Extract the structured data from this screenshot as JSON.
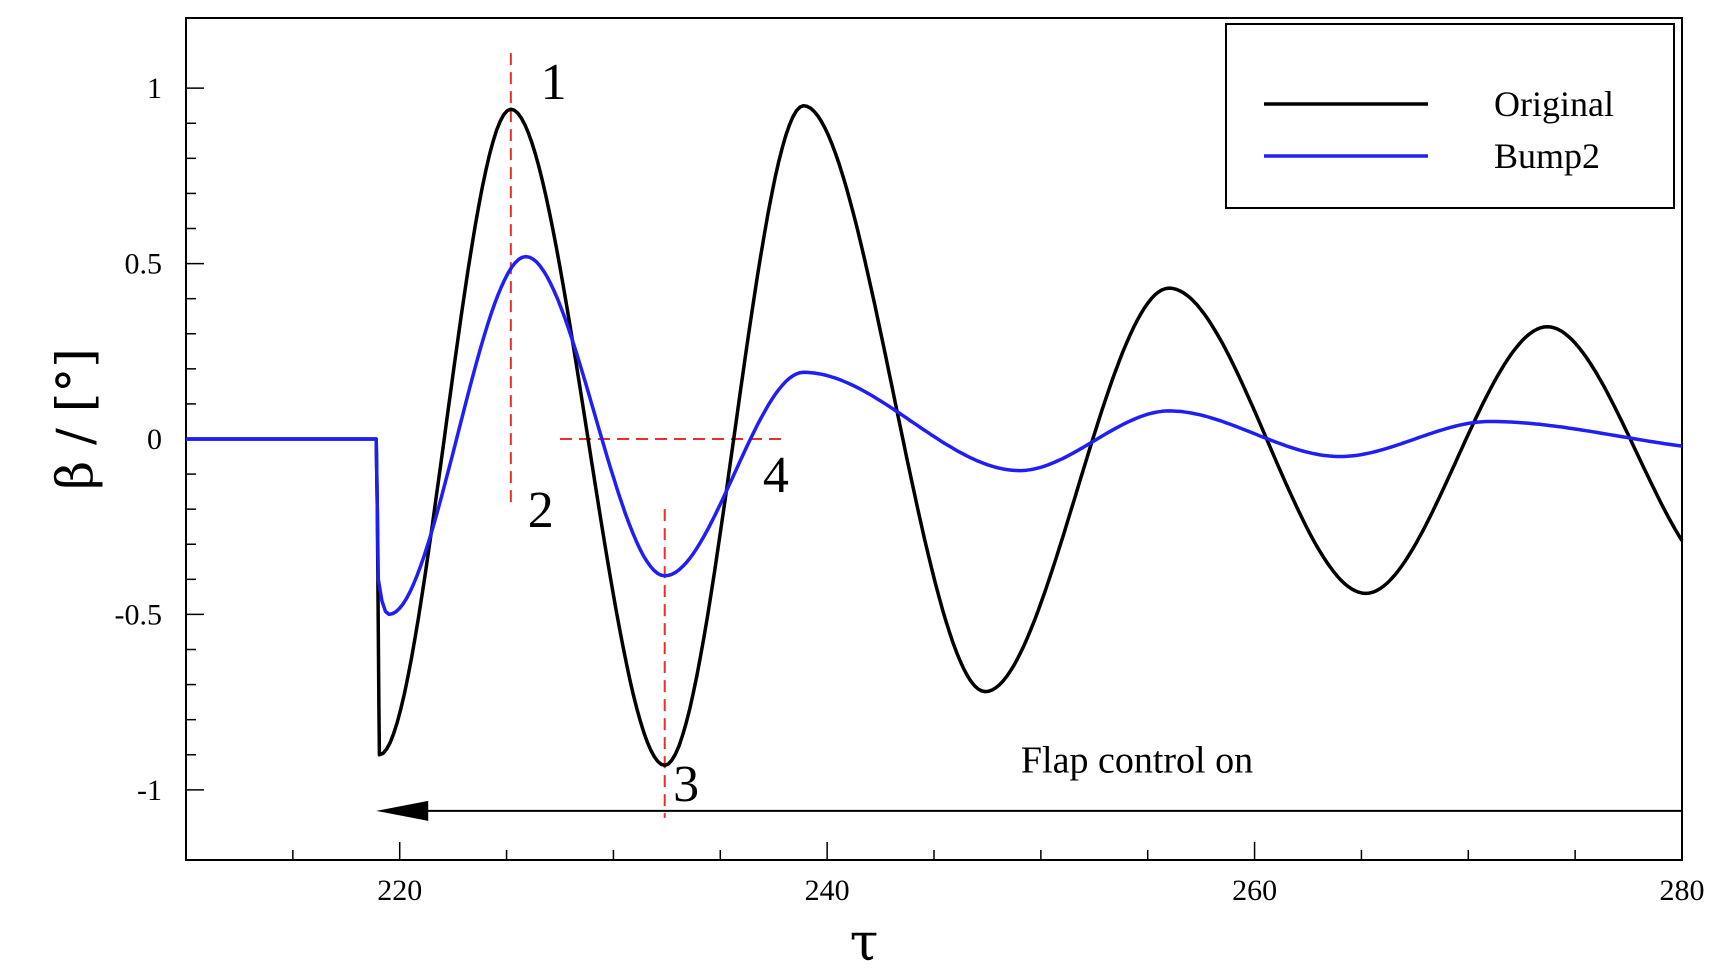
{
  "chart_data": {
    "type": "line",
    "xlabel": "τ",
    "ylabel": "β / [°]",
    "xlim": [
      210,
      280
    ],
    "ylim": [
      -1.2,
      1.2
    ],
    "x_ticks": [
      "220",
      "240",
      "260",
      "280"
    ],
    "y_ticks": [
      "1",
      "0.5",
      "0",
      "-0.5",
      "-1"
    ],
    "grid": false,
    "legend_position": "top-right",
    "series": [
      {
        "name": "Original",
        "color": "#000000",
        "x": [
          210,
          218.9,
          219.0,
          219.05,
          225.2,
          232.4,
          238.9,
          247.4,
          256.0,
          265.2,
          273.7,
          280
        ],
        "y": [
          0,
          0,
          -0.55,
          -0.9,
          0.94,
          -0.93,
          0.95,
          -0.72,
          0.43,
          -0.44,
          0.32,
          -0.29
        ]
      },
      {
        "name": "Bump2",
        "color": "#1f1ff5",
        "x": [
          210,
          218.9,
          219.0,
          219.5,
          225.9,
          232.4,
          238.9,
          249.0,
          256.0,
          264.0,
          271.0,
          280
        ],
        "y": [
          0,
          0,
          -0.4,
          -0.5,
          0.52,
          -0.39,
          0.19,
          -0.09,
          0.08,
          -0.05,
          0.05,
          -0.02
        ]
      }
    ],
    "reference_lines": [
      {
        "type": "vertical",
        "x": 225.2,
        "y_from": -0.2,
        "y_to": 1.1,
        "color": "#e8302a"
      },
      {
        "type": "vertical",
        "x": 232.4,
        "y_from": -1.08,
        "y_to": -0.2,
        "color": "#e8302a"
      },
      {
        "type": "horizontal",
        "y": 0,
        "x_from": 227.5,
        "x_to": 238.0,
        "color": "#e8302a"
      }
    ],
    "point_labels": [
      {
        "label": "1",
        "x": 227.2,
        "y": 1.02
      },
      {
        "label": "2",
        "x": 226.6,
        "y": -0.2
      },
      {
        "label": "3",
        "x": 233.4,
        "y": -0.98
      },
      {
        "label": "4",
        "x": 237.6,
        "y": -0.1
      }
    ],
    "annotation": {
      "text": "Flap control on",
      "x": 254.5,
      "y": -0.95,
      "arrow_from_x": 280,
      "arrow_to_x": 218.9,
      "arrow_y": -1.06
    }
  }
}
